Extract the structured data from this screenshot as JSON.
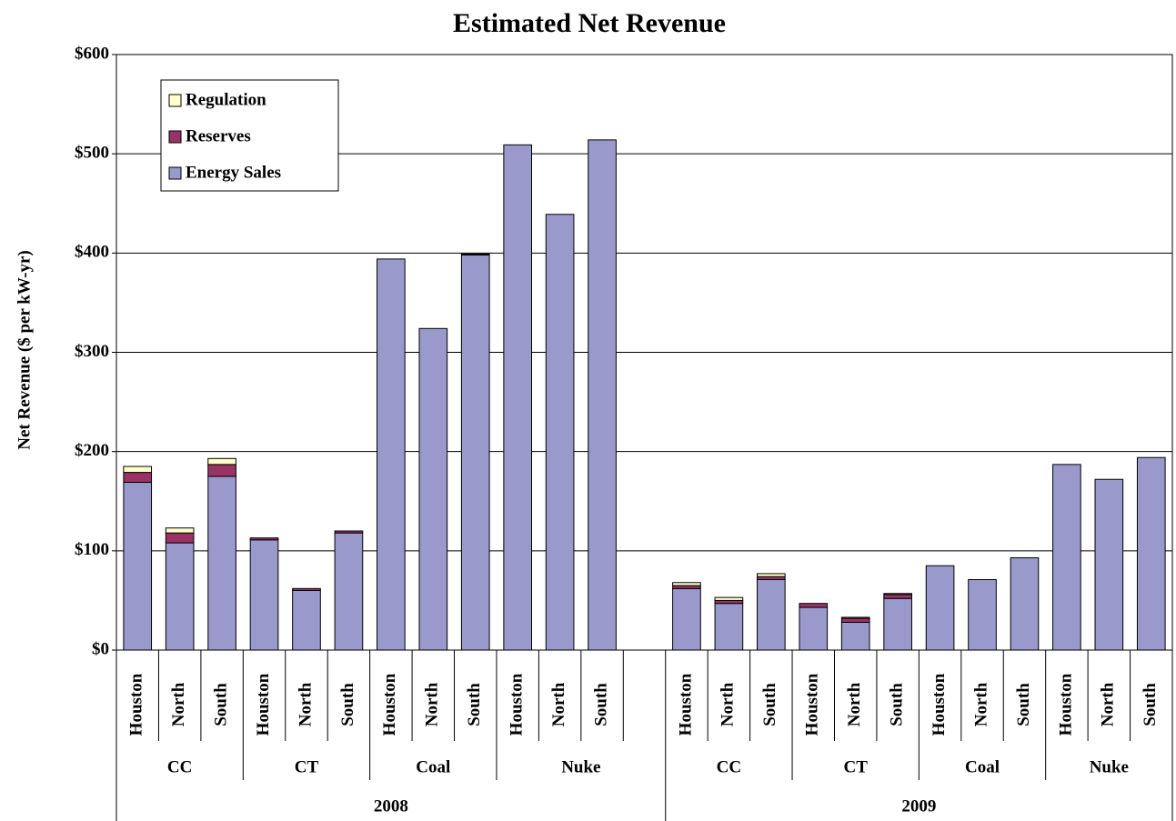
{
  "chart_data": {
    "type": "stacked-bar",
    "title": "Estimated Net Revenue",
    "y_label": "Net Revenue ($ per kW-yr)",
    "categories": [
      [
        "2008",
        "CC",
        "Houston"
      ],
      [
        "2008",
        "CC",
        "North"
      ],
      [
        "2008",
        "CC",
        "South"
      ],
      [
        "2008",
        "CT",
        "Houston"
      ],
      [
        "2008",
        "CT",
        "North"
      ],
      [
        "2008",
        "CT",
        "South"
      ],
      [
        "2008",
        "Coal",
        "Houston"
      ],
      [
        "2008",
        "Coal",
        "North"
      ],
      [
        "2008",
        "Coal",
        "South"
      ],
      [
        "2008",
        "Nuke",
        "Houston"
      ],
      [
        "2008",
        "Nuke",
        "North"
      ],
      [
        "2008",
        "Nuke",
        "South"
      ],
      null,
      [
        "2009",
        "CC",
        "Houston"
      ],
      [
        "2009",
        "CC",
        "North"
      ],
      [
        "2009",
        "CC",
        "South"
      ],
      [
        "2009",
        "CT",
        "Houston"
      ],
      [
        "2009",
        "CT",
        "North"
      ],
      [
        "2009",
        "CT",
        "South"
      ],
      [
        "2009",
        "Coal",
        "Houston"
      ],
      [
        "2009",
        "Coal",
        "North"
      ],
      [
        "2009",
        "Coal",
        "South"
      ],
      [
        "2009",
        "Nuke",
        "Houston"
      ],
      [
        "2009",
        "Nuke",
        "North"
      ],
      [
        "2009",
        "Nuke",
        "South"
      ]
    ],
    "series": [
      {
        "name": "Energy Sales",
        "color": "#9999cc",
        "values": [
          169,
          108,
          175,
          111,
          60,
          118,
          394,
          324,
          398,
          509,
          439,
          514,
          null,
          62,
          47,
          71,
          43,
          28,
          52,
          85,
          71,
          93,
          187,
          172,
          194
        ]
      },
      {
        "name": "Reserves",
        "color": "#993366",
        "values": [
          10,
          10,
          12,
          2,
          2,
          2,
          0,
          0,
          1,
          0,
          0,
          0,
          null,
          3,
          3,
          3,
          4,
          4,
          4,
          0,
          0,
          0,
          0,
          0,
          0
        ]
      },
      {
        "name": "Regulation",
        "color": "#ffffcc",
        "values": [
          6,
          5,
          6,
          0,
          0,
          0,
          0,
          0,
          0,
          0,
          0,
          0,
          null,
          3,
          3,
          3,
          0,
          1,
          1,
          0,
          0,
          0,
          0,
          0,
          0
        ]
      }
    ],
    "ylim": [
      0,
      600
    ],
    "yticks": [
      {
        "value": 0,
        "label": "$0"
      },
      {
        "value": 100,
        "label": "$100"
      },
      {
        "value": 200,
        "label": "$200"
      },
      {
        "value": 300,
        "label": "$300"
      },
      {
        "value": 400,
        "label": "$400"
      },
      {
        "value": 500,
        "label": "$500"
      },
      {
        "value": 600,
        "label": "$600"
      }
    ],
    "grid": true,
    "legend": "upper-left"
  }
}
